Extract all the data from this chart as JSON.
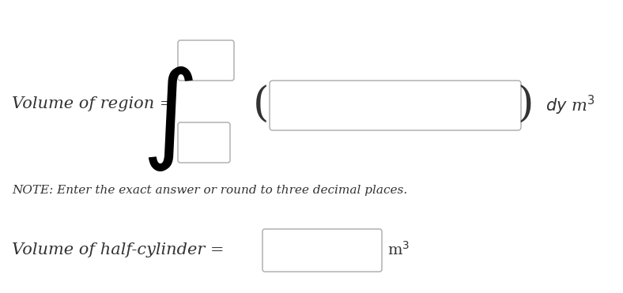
{
  "bg_color": "#ffffff",
  "text_color": "#333333",
  "line_color": "#aaaaaa",
  "integral_color": "#000000",
  "label_volume_region": "Volume of region =",
  "label_dy_m3": "$dy$ m$^3$",
  "label_note": "NOTE: Enter the exact answer or round to three decimal places.",
  "label_volume_half": "Volume of half-cylinder =",
  "label_m3": "m$^3$",
  "fig_width": 7.88,
  "fig_height": 3.71
}
